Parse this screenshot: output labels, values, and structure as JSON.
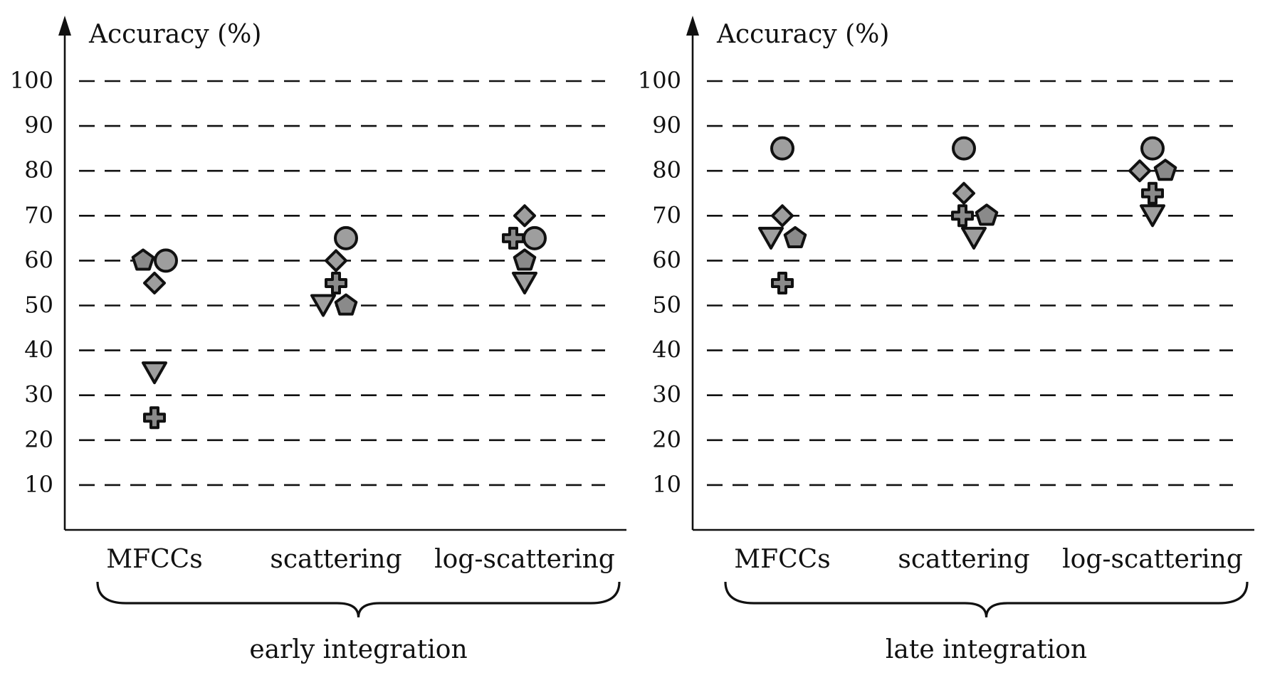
{
  "chart_data": [
    {
      "type": "scatter",
      "ylabel": "Accuracy (%)",
      "yticks": [
        10,
        20,
        30,
        40,
        50,
        60,
        70,
        80,
        90,
        100
      ],
      "ylim": [
        0,
        100
      ],
      "grid": true,
      "categories": [
        "MFCCs",
        "scattering",
        "log-scattering"
      ],
      "group_label": "early integration",
      "series": [
        {
          "marker": "circle",
          "values": [
            60,
            65,
            65
          ]
        },
        {
          "marker": "diamond",
          "values": [
            55,
            60,
            70
          ]
        },
        {
          "marker": "pentagon",
          "values": [
            60,
            50,
            60
          ]
        },
        {
          "marker": "cross",
          "values": [
            25,
            55,
            65
          ]
        },
        {
          "marker": "triangle-down",
          "values": [
            35,
            50,
            55
          ]
        }
      ]
    },
    {
      "type": "scatter",
      "ylabel": "Accuracy (%)",
      "yticks": [
        10,
        20,
        30,
        40,
        50,
        60,
        70,
        80,
        90,
        100
      ],
      "ylim": [
        0,
        100
      ],
      "grid": true,
      "categories": [
        "MFCCs",
        "scattering",
        "log-scattering"
      ],
      "group_label": "late integration",
      "series": [
        {
          "marker": "circle",
          "values": [
            85,
            85,
            85
          ]
        },
        {
          "marker": "diamond",
          "values": [
            70,
            75,
            80
          ]
        },
        {
          "marker": "pentagon",
          "values": [
            65,
            70,
            80
          ]
        },
        {
          "marker": "cross",
          "values": [
            55,
            70,
            75
          ]
        },
        {
          "marker": "triangle-down",
          "values": [
            65,
            65,
            70
          ]
        }
      ]
    }
  ],
  "colors": {
    "marker_fill": "#9e9e9e",
    "marker_fill_dark": "#8a8a8a",
    "stroke": "#111111",
    "grid": "#111111"
  }
}
